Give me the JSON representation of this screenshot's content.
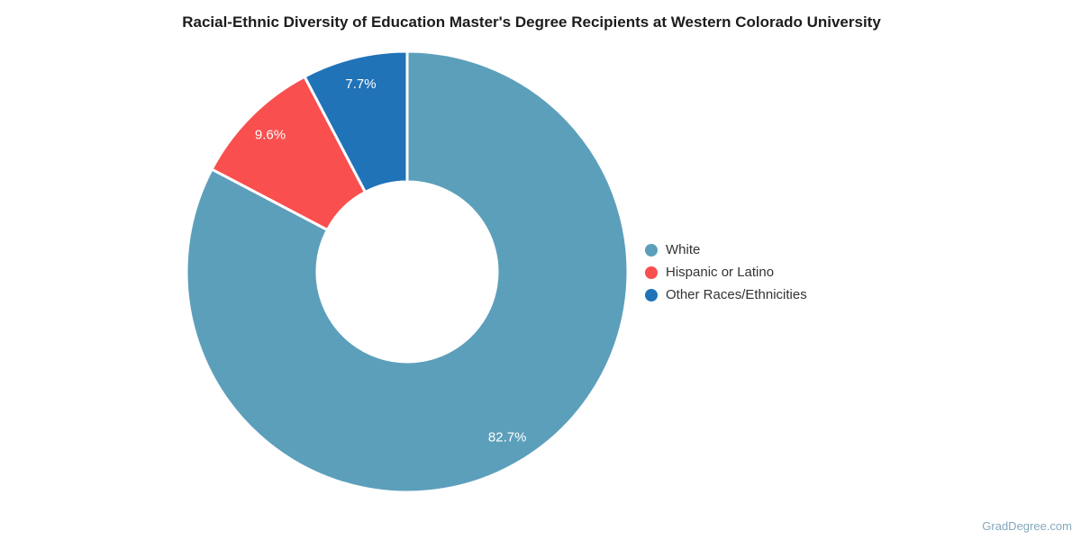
{
  "chart_data": {
    "type": "pie",
    "title": "Racial-Ethnic Diversity of Education Master's Degree Recipients at Western Colorado University",
    "categories": [
      "White",
      "Hispanic or Latino",
      "Other Races/Ethnicities"
    ],
    "values": [
      82.7,
      9.6,
      7.7
    ],
    "percent_labels": [
      "82.7%",
      "9.6%",
      "7.7%"
    ],
    "colors": [
      "#5C9FBB",
      "#F94F4F",
      "#2173B8"
    ],
    "slice_border_color": "#ffffff",
    "start_angle_deg": 0,
    "direction": "clockwise",
    "donut_hole_ratio": 0.41,
    "legend_position": "right",
    "legend": [
      {
        "label": "White",
        "color": "#5C9FBB"
      },
      {
        "label": "Hispanic or Latino",
        "color": "#F94F4F"
      },
      {
        "label": "Other Races/Ethnicities",
        "color": "#2173B8"
      }
    ]
  },
  "credits": {
    "text": "GradDegree.com"
  }
}
